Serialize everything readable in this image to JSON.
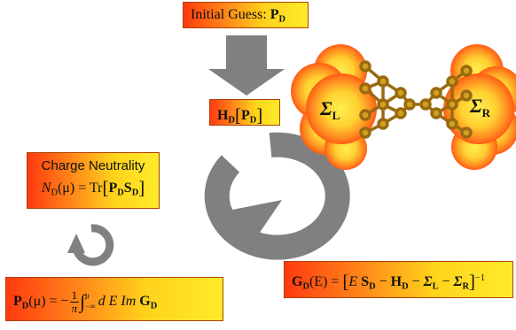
{
  "guess": {
    "label": "Initial Guess: ",
    "p": "P",
    "d": "D"
  },
  "hamiltonian": {
    "h": "H",
    "d": "D",
    "p": "P"
  },
  "charge": {
    "title": "Charge Neutrality",
    "n": "N",
    "d": "D",
    "mu": "(μ)",
    "eq": " = Tr",
    "p": "P",
    "s": "S"
  },
  "density": {
    "p": "P",
    "d": "D",
    "mu": "(μ)",
    "eq": " = −",
    "frac_num": "1",
    "frac_den": "π",
    "lim_upper": "μ",
    "lim_lower": "−∞",
    "int_body": "d E  Im ",
    "g": "G"
  },
  "green": {
    "g": "G",
    "d": "D",
    "arg": "(E) = ",
    "e": "E ",
    "s": "S",
    "minus": " − ",
    "h": "H",
    "sigma": "Σ",
    "l": "L",
    "r": "R",
    "exp": "−1"
  },
  "contacts": {
    "sigma_left": "Σ",
    "left_sub": "L",
    "sigma_right": "Σ",
    "right_sub": "R"
  },
  "colors": {
    "arrow": "#808080",
    "gold": "#c8961e",
    "box_red": "#ff3a10",
    "box_yellow": "#ffec2a",
    "cloud_orange": "#ff5a10",
    "cloud_yellow": "#ffe84a"
  }
}
